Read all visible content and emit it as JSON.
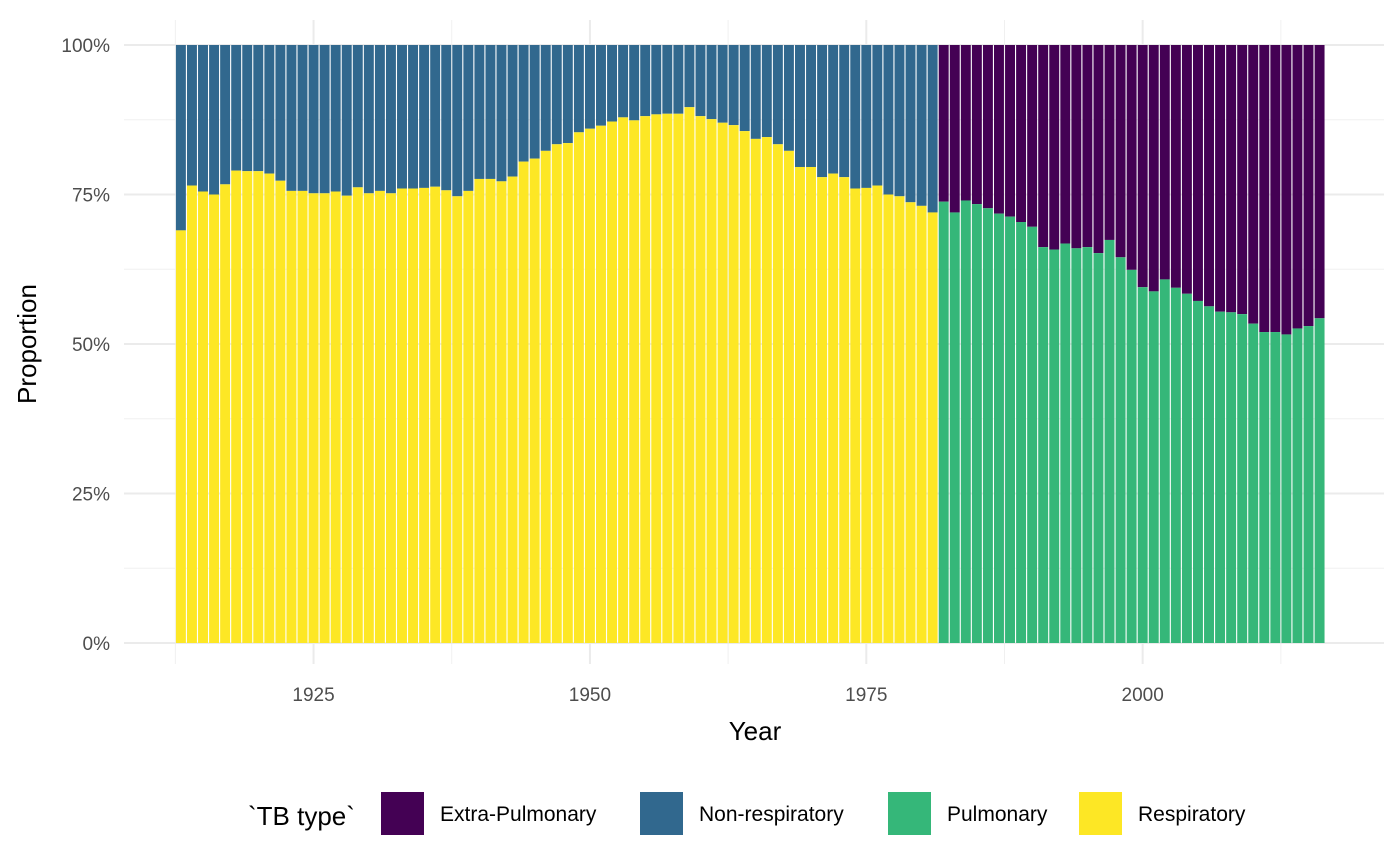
{
  "chart_data": {
    "type": "bar",
    "stacked": "proportion",
    "xlabel": "Year",
    "ylabel": "Proportion",
    "xlim": [
      1910,
      2019
    ],
    "ylim": [
      0,
      1
    ],
    "x_ticks": [
      {
        "value": 1925,
        "label": "1925"
      },
      {
        "value": 1950,
        "label": "1950"
      },
      {
        "value": 1975,
        "label": "1975"
      },
      {
        "value": 2000,
        "label": "2000"
      }
    ],
    "y_ticks": [
      {
        "value": 0,
        "label": "0%"
      },
      {
        "value": 0.25,
        "label": "25%"
      },
      {
        "value": 0.5,
        "label": "50%"
      },
      {
        "value": 0.75,
        "label": "75%"
      },
      {
        "value": 1,
        "label": "100%"
      }
    ],
    "grid": true,
    "legend": {
      "position": "bottom",
      "title": "`TB type`",
      "entries": [
        {
          "name": "Extra-Pulmonary",
          "color": "#440154"
        },
        {
          "name": "Non-respiratory",
          "color": "#31688E"
        },
        {
          "name": "Pulmonary",
          "color": "#35B779"
        },
        {
          "name": "Respiratory",
          "color": "#FDE725"
        }
      ]
    },
    "series_colors": {
      "Extra-Pulmonary": "#440154",
      "Non-respiratory": "#31688E",
      "Pulmonary": "#35B779",
      "Respiratory": "#FDE725"
    },
    "segment_a": {
      "years": [
        1913,
        1914,
        1915,
        1916,
        1917,
        1918,
        1919,
        1920,
        1921,
        1922,
        1923,
        1924,
        1925,
        1926,
        1927,
        1928,
        1929,
        1930,
        1931,
        1932,
        1933,
        1934,
        1935,
        1936,
        1937,
        1938,
        1939,
        1940,
        1941,
        1942,
        1943,
        1944,
        1945,
        1946,
        1947,
        1948,
        1949,
        1950,
        1951,
        1952,
        1953,
        1954,
        1955,
        1956,
        1957,
        1958,
        1959,
        1960,
        1961,
        1962,
        1963,
        1964,
        1965,
        1966,
        1967,
        1968,
        1969,
        1970,
        1971,
        1972,
        1973,
        1974,
        1975,
        1976,
        1977,
        1978,
        1979,
        1980,
        1981
      ],
      "lower_series": "Respiratory",
      "upper_series": "Non-respiratory",
      "lower_share": [
        0.69,
        0.765,
        0.755,
        0.75,
        0.767,
        0.79,
        0.789,
        0.789,
        0.785,
        0.773,
        0.756,
        0.756,
        0.752,
        0.752,
        0.755,
        0.748,
        0.762,
        0.752,
        0.756,
        0.752,
        0.76,
        0.76,
        0.761,
        0.763,
        0.757,
        0.747,
        0.756,
        0.776,
        0.776,
        0.772,
        0.78,
        0.805,
        0.81,
        0.823,
        0.834,
        0.836,
        0.854,
        0.86,
        0.865,
        0.872,
        0.879,
        0.874,
        0.881,
        0.884,
        0.885,
        0.885,
        0.896,
        0.881,
        0.876,
        0.87,
        0.866,
        0.856,
        0.843,
        0.846,
        0.834,
        0.823,
        0.796,
        0.796,
        0.779,
        0.785,
        0.779,
        0.76,
        0.761,
        0.765,
        0.75,
        0.747,
        0.737,
        0.731,
        0.72
      ]
    },
    "segment_b": {
      "years": [
        1982,
        1983,
        1984,
        1985,
        1986,
        1987,
        1988,
        1989,
        1990,
        1991,
        1992,
        1993,
        1994,
        1995,
        1996,
        1997,
        1998,
        1999,
        2000,
        2001,
        2002,
        2003,
        2004,
        2005,
        2006,
        2007,
        2008,
        2009,
        2010,
        2011,
        2012,
        2013,
        2014,
        2015,
        2016
      ],
      "lower_series": "Pulmonary",
      "upper_series": "Extra-Pulmonary",
      "lower_share": [
        0.738,
        0.72,
        0.74,
        0.734,
        0.727,
        0.718,
        0.713,
        0.704,
        0.696,
        0.662,
        0.658,
        0.668,
        0.66,
        0.662,
        0.652,
        0.674,
        0.645,
        0.624,
        0.595,
        0.588,
        0.608,
        0.594,
        0.584,
        0.572,
        0.563,
        0.554,
        0.553,
        0.55,
        0.534,
        0.52,
        0.52,
        0.516,
        0.526,
        0.53,
        0.543
      ]
    }
  }
}
